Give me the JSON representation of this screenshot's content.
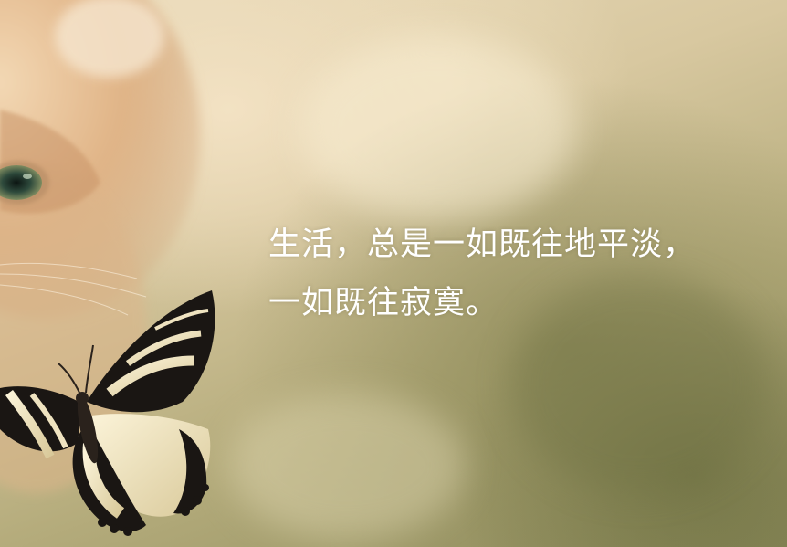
{
  "quote": {
    "line1": "生活，总是一如既往地平淡，",
    "line2": "一如既往寂寞。"
  },
  "colors": {
    "text": "#ffffff",
    "background_light": "#eadbbb",
    "background_dark": "#8e8c5c",
    "cat_fur": "#e2b98c",
    "butterfly_dark": "#1a1613",
    "butterfly_light": "#f1e7c7"
  }
}
